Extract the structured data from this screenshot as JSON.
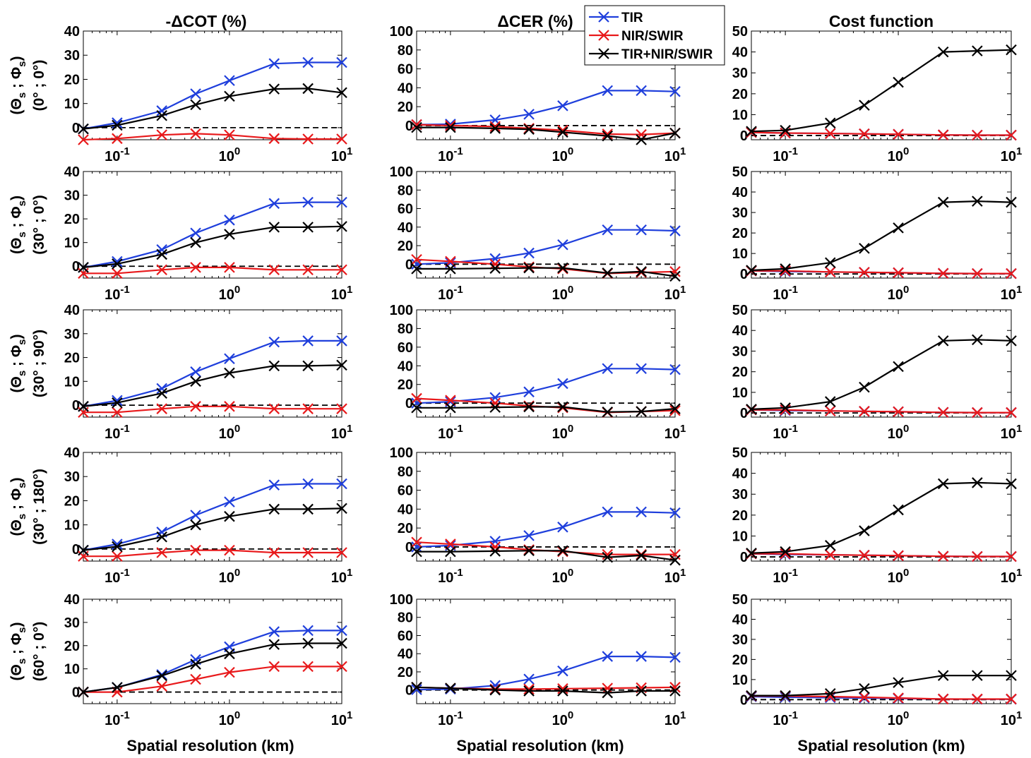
{
  "figure": {
    "column_titles": [
      "-ΔCOT (%)",
      "ΔCER (%)",
      "Cost function"
    ],
    "row_labels": [
      [
        "(Θs ; Φs)",
        "(0° ; 0°)"
      ],
      [
        "(Θs ; Φs)",
        "(30° ; 0°)"
      ],
      [
        "(Θs ; Φs)",
        "(30° ; 90°)"
      ],
      [
        "(Θs ; Φs)",
        "(30° ; 180°)"
      ],
      [
        "(Θs ; Φs)",
        "(60° ; 0°)"
      ]
    ],
    "xlabel": "Spatial resolution (km)",
    "legend": [
      {
        "label": "TIR",
        "color": "#1f3fdc"
      },
      {
        "label": "NIR/SWIR",
        "color": "#e8191b"
      },
      {
        "label": "TIR+NIR/SWIR",
        "color": "#000000"
      }
    ],
    "legend_position": "top, between middle and right columns"
  },
  "chart_data": {
    "type": "line",
    "x_scale": "log",
    "x": [
      0.05,
      0.1,
      0.25,
      0.5,
      1,
      2.5,
      5,
      10
    ],
    "xlim": [
      0.05,
      10
    ],
    "xticks": [
      "10^-1",
      "10^0",
      "10^1"
    ],
    "reference_line": {
      "y": 0,
      "style": "dashed"
    },
    "panels": [
      {
        "row": 0,
        "col": 0,
        "ylim": [
          -5,
          40
        ],
        "yticks": [
          0,
          10,
          20,
          30,
          40
        ],
        "series": [
          {
            "name": "TIR",
            "values": [
              -0.5,
              2,
              7,
              14,
              19.5,
              26.5,
              27,
              27
            ]
          },
          {
            "name": "NIR/SWIR",
            "values": [
              -5,
              -4.5,
              -3,
              -2.5,
              -3,
              -4.5,
              -4.7,
              -4.7
            ]
          },
          {
            "name": "TIR+NIR/SWIR",
            "values": [
              -0.5,
              1,
              5,
              9.5,
              13,
              16,
              16.2,
              14.5
            ]
          }
        ]
      },
      {
        "row": 0,
        "col": 1,
        "ylim": [
          -15,
          100
        ],
        "yticks": [
          0,
          20,
          40,
          60,
          80,
          100
        ],
        "series": [
          {
            "name": "TIR",
            "values": [
              1,
              1.5,
              6,
              12,
              21,
              37,
              37,
              36
            ]
          },
          {
            "name": "NIR/SWIR",
            "values": [
              1,
              0,
              -1,
              -3,
              -5,
              -9,
              -9.5,
              -8
            ]
          },
          {
            "name": "TIR+NIR/SWIR",
            "values": [
              -2,
              -2,
              -3,
              -4,
              -7,
              -11,
              -15,
              -8
            ]
          }
        ]
      },
      {
        "row": 0,
        "col": 2,
        "ylim": [
          -2,
          50
        ],
        "yticks": [
          0,
          10,
          20,
          30,
          40,
          50
        ],
        "series": [
          {
            "name": "TIR",
            "values": [
              1.5,
              1.2,
              1,
              0.8,
              0.6,
              0.3,
              0.2,
              0.2
            ]
          },
          {
            "name": "NIR/SWIR",
            "values": [
              1.5,
              1.2,
              1,
              0.8,
              0.6,
              0.3,
              0.2,
              0.2
            ]
          },
          {
            "name": "TIR+NIR/SWIR",
            "values": [
              2,
              2.5,
              6,
              14.5,
              25.5,
              40,
              40.5,
              41
            ]
          }
        ]
      },
      {
        "row": 1,
        "col": 0,
        "ylim": [
          -5,
          40
        ],
        "yticks": [
          0,
          10,
          20,
          30,
          40
        ],
        "series": [
          {
            "name": "TIR",
            "values": [
              -0.5,
              2,
              7,
              14,
              19.5,
              26.5,
              27,
              27
            ]
          },
          {
            "name": "NIR/SWIR",
            "values": [
              -3,
              -3,
              -1.5,
              -0.5,
              -0.5,
              -1.5,
              -1.5,
              -1.5
            ]
          },
          {
            "name": "TIR+NIR/SWIR",
            "values": [
              -0.5,
              1,
              5,
              10,
              13.5,
              16.5,
              16.5,
              16.8
            ]
          }
        ]
      },
      {
        "row": 1,
        "col": 1,
        "ylim": [
          -15,
          100
        ],
        "yticks": [
          0,
          20,
          40,
          60,
          80,
          100
        ],
        "series": [
          {
            "name": "TIR",
            "values": [
              0,
              1.5,
              6,
              12,
              21,
              37,
              37,
              36
            ]
          },
          {
            "name": "NIR/SWIR",
            "values": [
              5,
              3,
              0,
              -3,
              -5,
              -10,
              -9,
              -8
            ]
          },
          {
            "name": "TIR+NIR/SWIR",
            "values": [
              -5,
              -5,
              -4.5,
              -4,
              -4,
              -9.5,
              -8,
              -13
            ]
          }
        ]
      },
      {
        "row": 1,
        "col": 2,
        "ylim": [
          -2,
          50
        ],
        "yticks": [
          0,
          10,
          20,
          30,
          40,
          50
        ],
        "series": [
          {
            "name": "TIR",
            "values": [
              1.5,
              1.2,
              1,
              0.8,
              0.6,
              0.3,
              0.2,
              0.2
            ]
          },
          {
            "name": "NIR/SWIR",
            "values": [
              1.5,
              1.5,
              1,
              0.8,
              0.6,
              0.3,
              0.2,
              0.2
            ]
          },
          {
            "name": "TIR+NIR/SWIR",
            "values": [
              1.8,
              2.5,
              5.5,
              12.5,
              22.5,
              35,
              35.5,
              35
            ]
          }
        ]
      },
      {
        "row": 2,
        "col": 0,
        "ylim": [
          -5,
          40
        ],
        "yticks": [
          0,
          10,
          20,
          30,
          40
        ],
        "series": [
          {
            "name": "TIR",
            "values": [
              -0.5,
              2,
              7,
              14,
              19.5,
              26.5,
              27,
              27
            ]
          },
          {
            "name": "NIR/SWIR",
            "values": [
              -3,
              -3,
              -1.5,
              -0.5,
              -0.5,
              -1.5,
              -1.5,
              -1.5
            ]
          },
          {
            "name": "TIR+NIR/SWIR",
            "values": [
              -0.5,
              1,
              5,
              10,
              13.5,
              16.5,
              16.5,
              16.8
            ]
          }
        ]
      },
      {
        "row": 2,
        "col": 1,
        "ylim": [
          -15,
          100
        ],
        "yticks": [
          0,
          20,
          40,
          60,
          80,
          100
        ],
        "series": [
          {
            "name": "TIR",
            "values": [
              0,
              1.5,
              6,
              12,
              21,
              37,
              37,
              36
            ]
          },
          {
            "name": "NIR/SWIR",
            "values": [
              5,
              3,
              0,
              -3,
              -5,
              -10,
              -9,
              -8
            ]
          },
          {
            "name": "TIR+NIR/SWIR",
            "values": [
              -5,
              -5,
              -4.5,
              -4,
              -4,
              -9.5,
              -9,
              -6
            ]
          }
        ]
      },
      {
        "row": 2,
        "col": 2,
        "ylim": [
          -2,
          50
        ],
        "yticks": [
          0,
          10,
          20,
          30,
          40,
          50
        ],
        "series": [
          {
            "name": "TIR",
            "values": [
              1.5,
              1.2,
              1,
              0.8,
              0.6,
              0.3,
              0.2,
              0.2
            ]
          },
          {
            "name": "NIR/SWIR",
            "values": [
              1.5,
              1.5,
              1,
              0.8,
              0.6,
              0.3,
              0.2,
              0.2
            ]
          },
          {
            "name": "TIR+NIR/SWIR",
            "values": [
              1.8,
              2.5,
              5.5,
              12.5,
              22.5,
              35,
              35.5,
              35
            ]
          }
        ]
      },
      {
        "row": 3,
        "col": 0,
        "ylim": [
          -5,
          40
        ],
        "yticks": [
          0,
          10,
          20,
          30,
          40
        ],
        "series": [
          {
            "name": "TIR",
            "values": [
              -0.5,
              2,
              7,
              14,
              19.5,
              26.5,
              27,
              27
            ]
          },
          {
            "name": "NIR/SWIR",
            "values": [
              -3,
              -3,
              -1.5,
              -0.5,
              -0.5,
              -1.5,
              -1.5,
              -1.5
            ]
          },
          {
            "name": "TIR+NIR/SWIR",
            "values": [
              -0.5,
              1,
              5,
              10,
              13.5,
              16.5,
              16.5,
              16.8
            ]
          }
        ]
      },
      {
        "row": 3,
        "col": 1,
        "ylim": [
          -15,
          100
        ],
        "yticks": [
          0,
          20,
          40,
          60,
          80,
          100
        ],
        "series": [
          {
            "name": "TIR",
            "values": [
              0,
              1.5,
              6,
              12,
              21,
              37,
              37,
              36
            ]
          },
          {
            "name": "NIR/SWIR",
            "values": [
              5,
              3,
              0,
              -3,
              -5,
              -8,
              -8,
              -8
            ]
          },
          {
            "name": "TIR+NIR/SWIR",
            "values": [
              -5,
              -5,
              -4.5,
              -4,
              -4,
              -11,
              -9,
              -14
            ]
          }
        ]
      },
      {
        "row": 3,
        "col": 2,
        "ylim": [
          -2,
          50
        ],
        "yticks": [
          0,
          10,
          20,
          30,
          40,
          50
        ],
        "series": [
          {
            "name": "TIR",
            "values": [
              1.5,
              1.2,
              1,
              0.8,
              0.6,
              0.3,
              0.2,
              0.2
            ]
          },
          {
            "name": "NIR/SWIR",
            "values": [
              1.5,
              1.5,
              1,
              0.8,
              0.6,
              0.3,
              0.2,
              0.2
            ]
          },
          {
            "name": "TIR+NIR/SWIR",
            "values": [
              1.8,
              2.5,
              5.5,
              12.5,
              22.5,
              35,
              35.5,
              35
            ]
          }
        ]
      },
      {
        "row": 4,
        "col": 0,
        "ylim": [
          -5,
          40
        ],
        "yticks": [
          0,
          10,
          20,
          30,
          40
        ],
        "series": [
          {
            "name": "TIR",
            "values": [
              0,
              2,
              7.5,
              14,
              19.5,
              26,
              26.5,
              26.5
            ]
          },
          {
            "name": "NIR/SWIR",
            "values": [
              0,
              0,
              2.5,
              5.5,
              8.5,
              11,
              11,
              11
            ]
          },
          {
            "name": "TIR+NIR/SWIR",
            "values": [
              0,
              2,
              7,
              12,
              16.5,
              20.5,
              21,
              21
            ]
          }
        ]
      },
      {
        "row": 4,
        "col": 1,
        "ylim": [
          -15,
          100
        ],
        "yticks": [
          0,
          20,
          40,
          60,
          80,
          100
        ],
        "series": [
          {
            "name": "TIR",
            "values": [
              0.5,
              1,
              5,
              12,
              21,
              37,
              37,
              36
            ]
          },
          {
            "name": "NIR/SWIR",
            "values": [
              3,
              2,
              1,
              1,
              1.5,
              2,
              2.5,
              3
            ]
          },
          {
            "name": "TIR+NIR/SWIR",
            "values": [
              3,
              2,
              0,
              -1,
              -1,
              -3,
              -1,
              -1
            ]
          }
        ]
      },
      {
        "row": 4,
        "col": 2,
        "ylim": [
          -2,
          50
        ],
        "yticks": [
          0,
          10,
          20,
          30,
          40,
          50
        ],
        "series": [
          {
            "name": "TIR",
            "values": [
              1.5,
              1.2,
              1,
              0.8,
              0.6,
              0.3,
              0.2,
              0.2
            ]
          },
          {
            "name": "NIR/SWIR",
            "values": [
              1.8,
              1.8,
              1.5,
              1.2,
              0.8,
              0.3,
              0.3,
              0.3
            ]
          },
          {
            "name": "TIR+NIR/SWIR",
            "values": [
              2,
              2,
              3,
              5.5,
              8.5,
              12,
              12,
              12
            ]
          }
        ]
      }
    ]
  }
}
